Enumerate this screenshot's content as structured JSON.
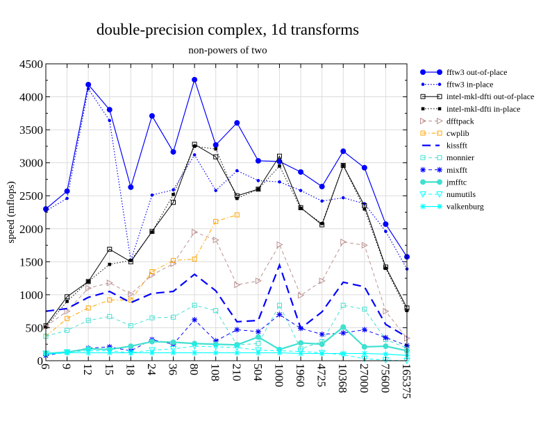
{
  "chart_data": {
    "type": "line",
    "title": "double-precision complex, 1d transforms",
    "subtitle": "non-powers of two",
    "ylabel": "speed (mflops)",
    "xlabel": "",
    "ylim": [
      0,
      4500
    ],
    "yticks": [
      0,
      500,
      1000,
      1500,
      2000,
      2500,
      3000,
      3500,
      4000,
      4500
    ],
    "grid": true,
    "legend_position": "right",
    "categories": [
      "6",
      "9",
      "12",
      "15",
      "18",
      "24",
      "36",
      "80",
      "108",
      "210",
      "504",
      "1000",
      "1960",
      "4725",
      "10368",
      "27000",
      "75600",
      "165375"
    ],
    "series": [
      {
        "name": "fftw3 out-of-place",
        "color": "#0000ff",
        "dash": "",
        "marker": "circle-filled",
        "width": 1.2,
        "values": [
          2300,
          2570,
          4185,
          3805,
          2630,
          3710,
          3165,
          4260,
          3270,
          3605,
          3030,
          3020,
          2860,
          2640,
          3175,
          2925,
          2070,
          1575
        ]
      },
      {
        "name": "fftw3 in-place",
        "color": "#0000ff",
        "dash": "1.5,2.5",
        "marker": "dot",
        "width": 1.2,
        "values": [
          2270,
          2460,
          4120,
          3640,
          1520,
          2510,
          2590,
          3120,
          2580,
          2880,
          2730,
          2710,
          2580,
          2420,
          2470,
          2380,
          1960,
          1390
        ]
      },
      {
        "name": "intel-mkl-dfti out-of-place",
        "color": "#000000",
        "dash": "",
        "marker": "square-open",
        "width": 1,
        "values": [
          530,
          970,
          1200,
          1690,
          1500,
          1960,
          2400,
          3280,
          3090,
          2500,
          2600,
          3100,
          2320,
          2060,
          2960,
          2350,
          1420,
          800
        ]
      },
      {
        "name": "intel-mkl-dfti in-place",
        "color": "#000000",
        "dash": "1.5,2.5",
        "marker": "square-filled",
        "width": 1,
        "values": [
          510,
          900,
          1200,
          1460,
          1520,
          1950,
          2520,
          3250,
          3210,
          2460,
          2600,
          2950,
          2310,
          2080,
          2960,
          2300,
          1400,
          760
        ]
      },
      {
        "name": "dfftpack",
        "color": "#bc8f8f",
        "dash": "5,4",
        "marker": "triangle-right",
        "width": 1,
        "values": [
          520,
          750,
          1100,
          1180,
          1010,
          1300,
          1470,
          1950,
          1830,
          1150,
          1210,
          1760,
          990,
          1210,
          1800,
          1750,
          750,
          340
        ]
      },
      {
        "name": "cwplib",
        "color": "#ffa500",
        "dash": "6,3,1.5,3",
        "marker": "square-open",
        "width": 1,
        "values": [
          370,
          640,
          800,
          920,
          920,
          1350,
          1520,
          1540,
          2110,
          2210,
          null,
          null,
          null,
          null,
          null,
          null,
          null,
          null
        ]
      },
      {
        "name": "kissfft",
        "color": "#0000ff",
        "dash": "12,7",
        "marker": "none",
        "width": 2.2,
        "values": [
          750,
          790,
          960,
          1050,
          880,
          1020,
          1050,
          1310,
          1060,
          590,
          610,
          1450,
          490,
          740,
          1190,
          1120,
          550,
          360
        ]
      },
      {
        "name": "monnier",
        "color": "#40e0d0",
        "dash": "5,4",
        "marker": "square-open",
        "width": 1,
        "values": [
          370,
          460,
          610,
          670,
          530,
          650,
          660,
          840,
          760,
          240,
          260,
          840,
          180,
          290,
          840,
          780,
          320,
          190
        ]
      },
      {
        "name": "mixfft",
        "color": "#0000ff",
        "dash": "5,4",
        "marker": "star",
        "width": 1,
        "values": [
          80,
          130,
          190,
          210,
          150,
          320,
          250,
          620,
          300,
          470,
          440,
          700,
          490,
          400,
          420,
          470,
          350,
          230
        ]
      },
      {
        "name": "jmfftc",
        "color": "#40e0d0",
        "dash": "",
        "marker": "circle-filled",
        "width": 2.2,
        "values": [
          110,
          130,
          180,
          170,
          220,
          290,
          280,
          260,
          250,
          240,
          360,
          170,
          270,
          250,
          510,
          210,
          220,
          150
        ]
      },
      {
        "name": "numutils",
        "color": "#00ffff",
        "dash": "5,4",
        "marker": "triangle-down",
        "width": 1,
        "values": [
          110,
          130,
          150,
          150,
          120,
          160,
          180,
          220,
          210,
          200,
          160,
          150,
          140,
          120,
          90,
          30,
          10,
          0
        ]
      },
      {
        "name": "valkenburg",
        "color": "#00ffff",
        "dash": "",
        "marker": "star",
        "width": 1.2,
        "values": [
          100,
          120,
          120,
          120,
          120,
          120,
          120,
          120,
          120,
          120,
          120,
          120,
          110,
          110,
          110,
          110,
          100,
          80
        ]
      }
    ]
  }
}
